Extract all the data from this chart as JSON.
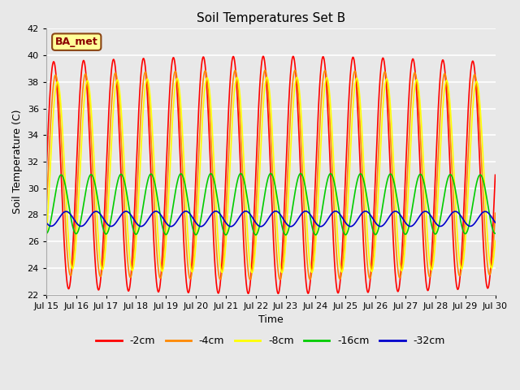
{
  "title": "Soil Temperatures Set B",
  "xlabel": "Time",
  "ylabel": "Soil Temperature (C)",
  "ylim": [
    22,
    42
  ],
  "yticks": [
    22,
    24,
    26,
    28,
    30,
    32,
    34,
    36,
    38,
    40,
    42
  ],
  "background_color": "#e8e8e8",
  "plot_bg_color": "#e8e8e8",
  "grid_color": "#ffffff",
  "annotation_text": "BA_met",
  "annotation_bg": "#ffff99",
  "annotation_border": "#8b4513",
  "legend_entries": [
    "-2cm",
    "-4cm",
    "-8cm",
    "-16cm",
    "-32cm"
  ],
  "line_colors": [
    "#ff0000",
    "#ff8800",
    "#ffff00",
    "#00cc00",
    "#0000cc"
  ],
  "period_hours": 24,
  "depths": {
    "-2cm": {
      "mean": 31.0,
      "amp": 8.5,
      "phase_hours": 0.0,
      "trend": 0.0
    },
    "-4cm": {
      "mean": 31.0,
      "amp": 7.5,
      "phase_hours": 1.5,
      "trend": 0.0
    },
    "-8cm": {
      "mean": 31.0,
      "amp": 7.0,
      "phase_hours": 3.0,
      "trend": 0.0
    },
    "-16cm": {
      "mean": 28.8,
      "amp": 2.2,
      "phase_hours": 6.0,
      "trend": 0.0
    },
    "-32cm": {
      "mean": 27.7,
      "amp": 0.55,
      "phase_hours": 10.0,
      "trend": 0.0
    }
  },
  "xtick_positions": [
    0,
    24,
    48,
    72,
    96,
    120,
    144,
    168,
    192,
    216,
    240,
    264,
    288,
    312,
    336,
    360
  ],
  "xtick_labels": [
    "Jul 15",
    "Jul 16",
    "Jul 17",
    "Jul 18",
    "Jul 19",
    "Jul 20",
    "Jul 21",
    "Jul 22",
    "Jul 23",
    "Jul 24",
    "Jul 25",
    "Jul 26",
    "Jul 27",
    "Jul 28",
    "Jul 29",
    "Jul 30"
  ],
  "title_fontsize": 11,
  "axis_fontsize": 9,
  "tick_fontsize": 8,
  "legend_fontsize": 9,
  "line_width": 1.2
}
